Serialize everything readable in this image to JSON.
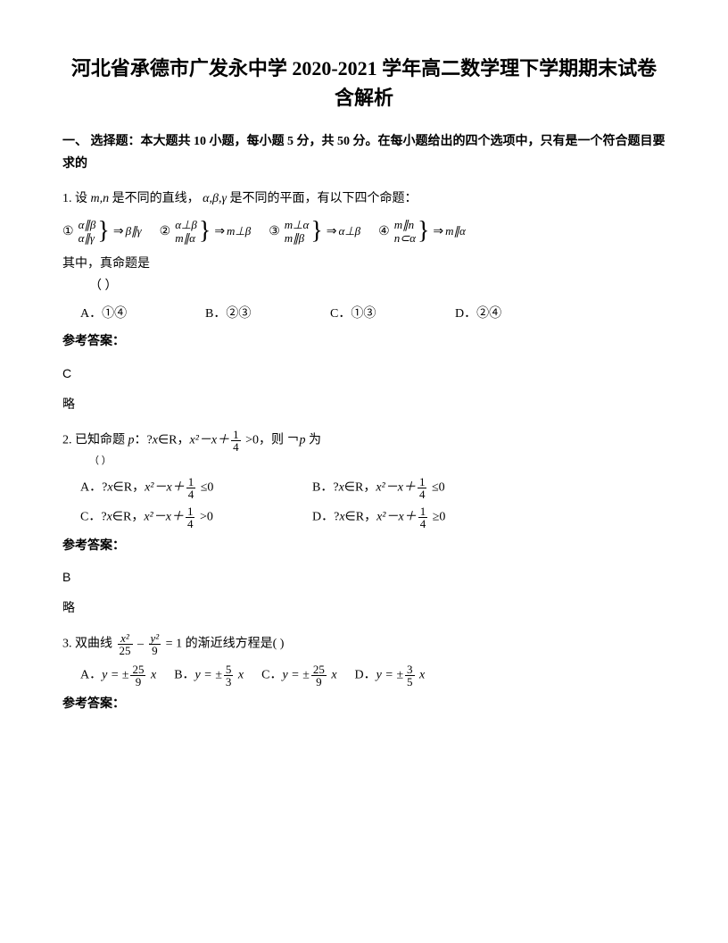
{
  "title": "河北省承德市广发永中学 2020-2021 学年高二数学理下学期期末试卷含解析",
  "section1": {
    "heading": "一、 选择题：本大题共 10 小题，每小题 5 分，共 50 分。在每小题给出的四个选项中，只有是一个符合题目要求的"
  },
  "q1": {
    "stem_pre": "1. 设",
    "mn": "m,n",
    "stem_mid": " 是不同的直线，",
    "abg": "α,β,γ",
    "stem_post": " 是不同的平面，有以下四个命题：",
    "p1": {
      "circ": "①",
      "l1": "α∥β",
      "l2": "α∥γ",
      "res": "β∥γ"
    },
    "p2": {
      "circ": "②",
      "l1": "α⊥β",
      "l2": "m∥α",
      "res": "m⊥β"
    },
    "p3": {
      "circ": "③",
      "l1": "m⊥α",
      "l2": "m∥β",
      "res": "α⊥β"
    },
    "p4": {
      "circ": "④",
      "l1": "m∥n",
      "l2": "n⊂α",
      "res": "m∥α"
    },
    "which": "其中，真命题是",
    "optA": "A．①④",
    "optB": "B．②③",
    "optC": "C．①③",
    "optD": "D．②④",
    "ansLabel": "参考答案：",
    "ans": "C",
    "lue": "略"
  },
  "q2": {
    "stem_pre": "2. 已知命题 ",
    "p": "p",
    "stem_mid1": "：?",
    "x": "x",
    "stem_mid2": "∈R，",
    "expr": "x²－x＋",
    "frac_num": "1",
    "frac_den": "4",
    "gt": " >0，则 ￢",
    "p2": "p",
    "stem_post": " 为",
    "optA_pre": "A．?",
    "optA_mid": "∈R，",
    "optA_expr": "x²－x＋",
    "optA_tail": " ≤0",
    "optB_pre": "B．?",
    "optB_mid": "∈R，",
    "optB_expr": "x²－x＋",
    "optB_tail": " ≤0",
    "optC_pre": "C．?",
    "optC_mid": "∈R，",
    "optC_expr": "x²－x＋",
    "optC_tail": " >0",
    "optD_pre": "D．?",
    "optD_mid": "∈R，",
    "optD_expr": "x²－x＋",
    "optD_tail": " ≥0",
    "ansLabel": "参考答案：",
    "ans": "B",
    "lue": "略"
  },
  "q3": {
    "stem_pre": " 3. 双曲线 ",
    "eq_l_num": "x²",
    "eq_l_den": "25",
    "minus": " – ",
    "eq_r_num": "y²",
    "eq_r_den": "9",
    "eq_eq": " = 1",
    "stem_post": " 的渐近线方程是(          )",
    "optA_lbl": "A．",
    "optA_num": "25",
    "optA_den": "9",
    "optB_lbl": "B．",
    "optB_num": "5",
    "optB_den": "3",
    "optC_lbl": "C．",
    "optC_num": "25",
    "optC_den": "9",
    "optD_lbl": "D．",
    "optD_num": "3",
    "optD_den": "5",
    "y_eq": "y = ±",
    "x_suf": " x",
    "ansLabel": "参考答案："
  },
  "paren": "（        ）"
}
